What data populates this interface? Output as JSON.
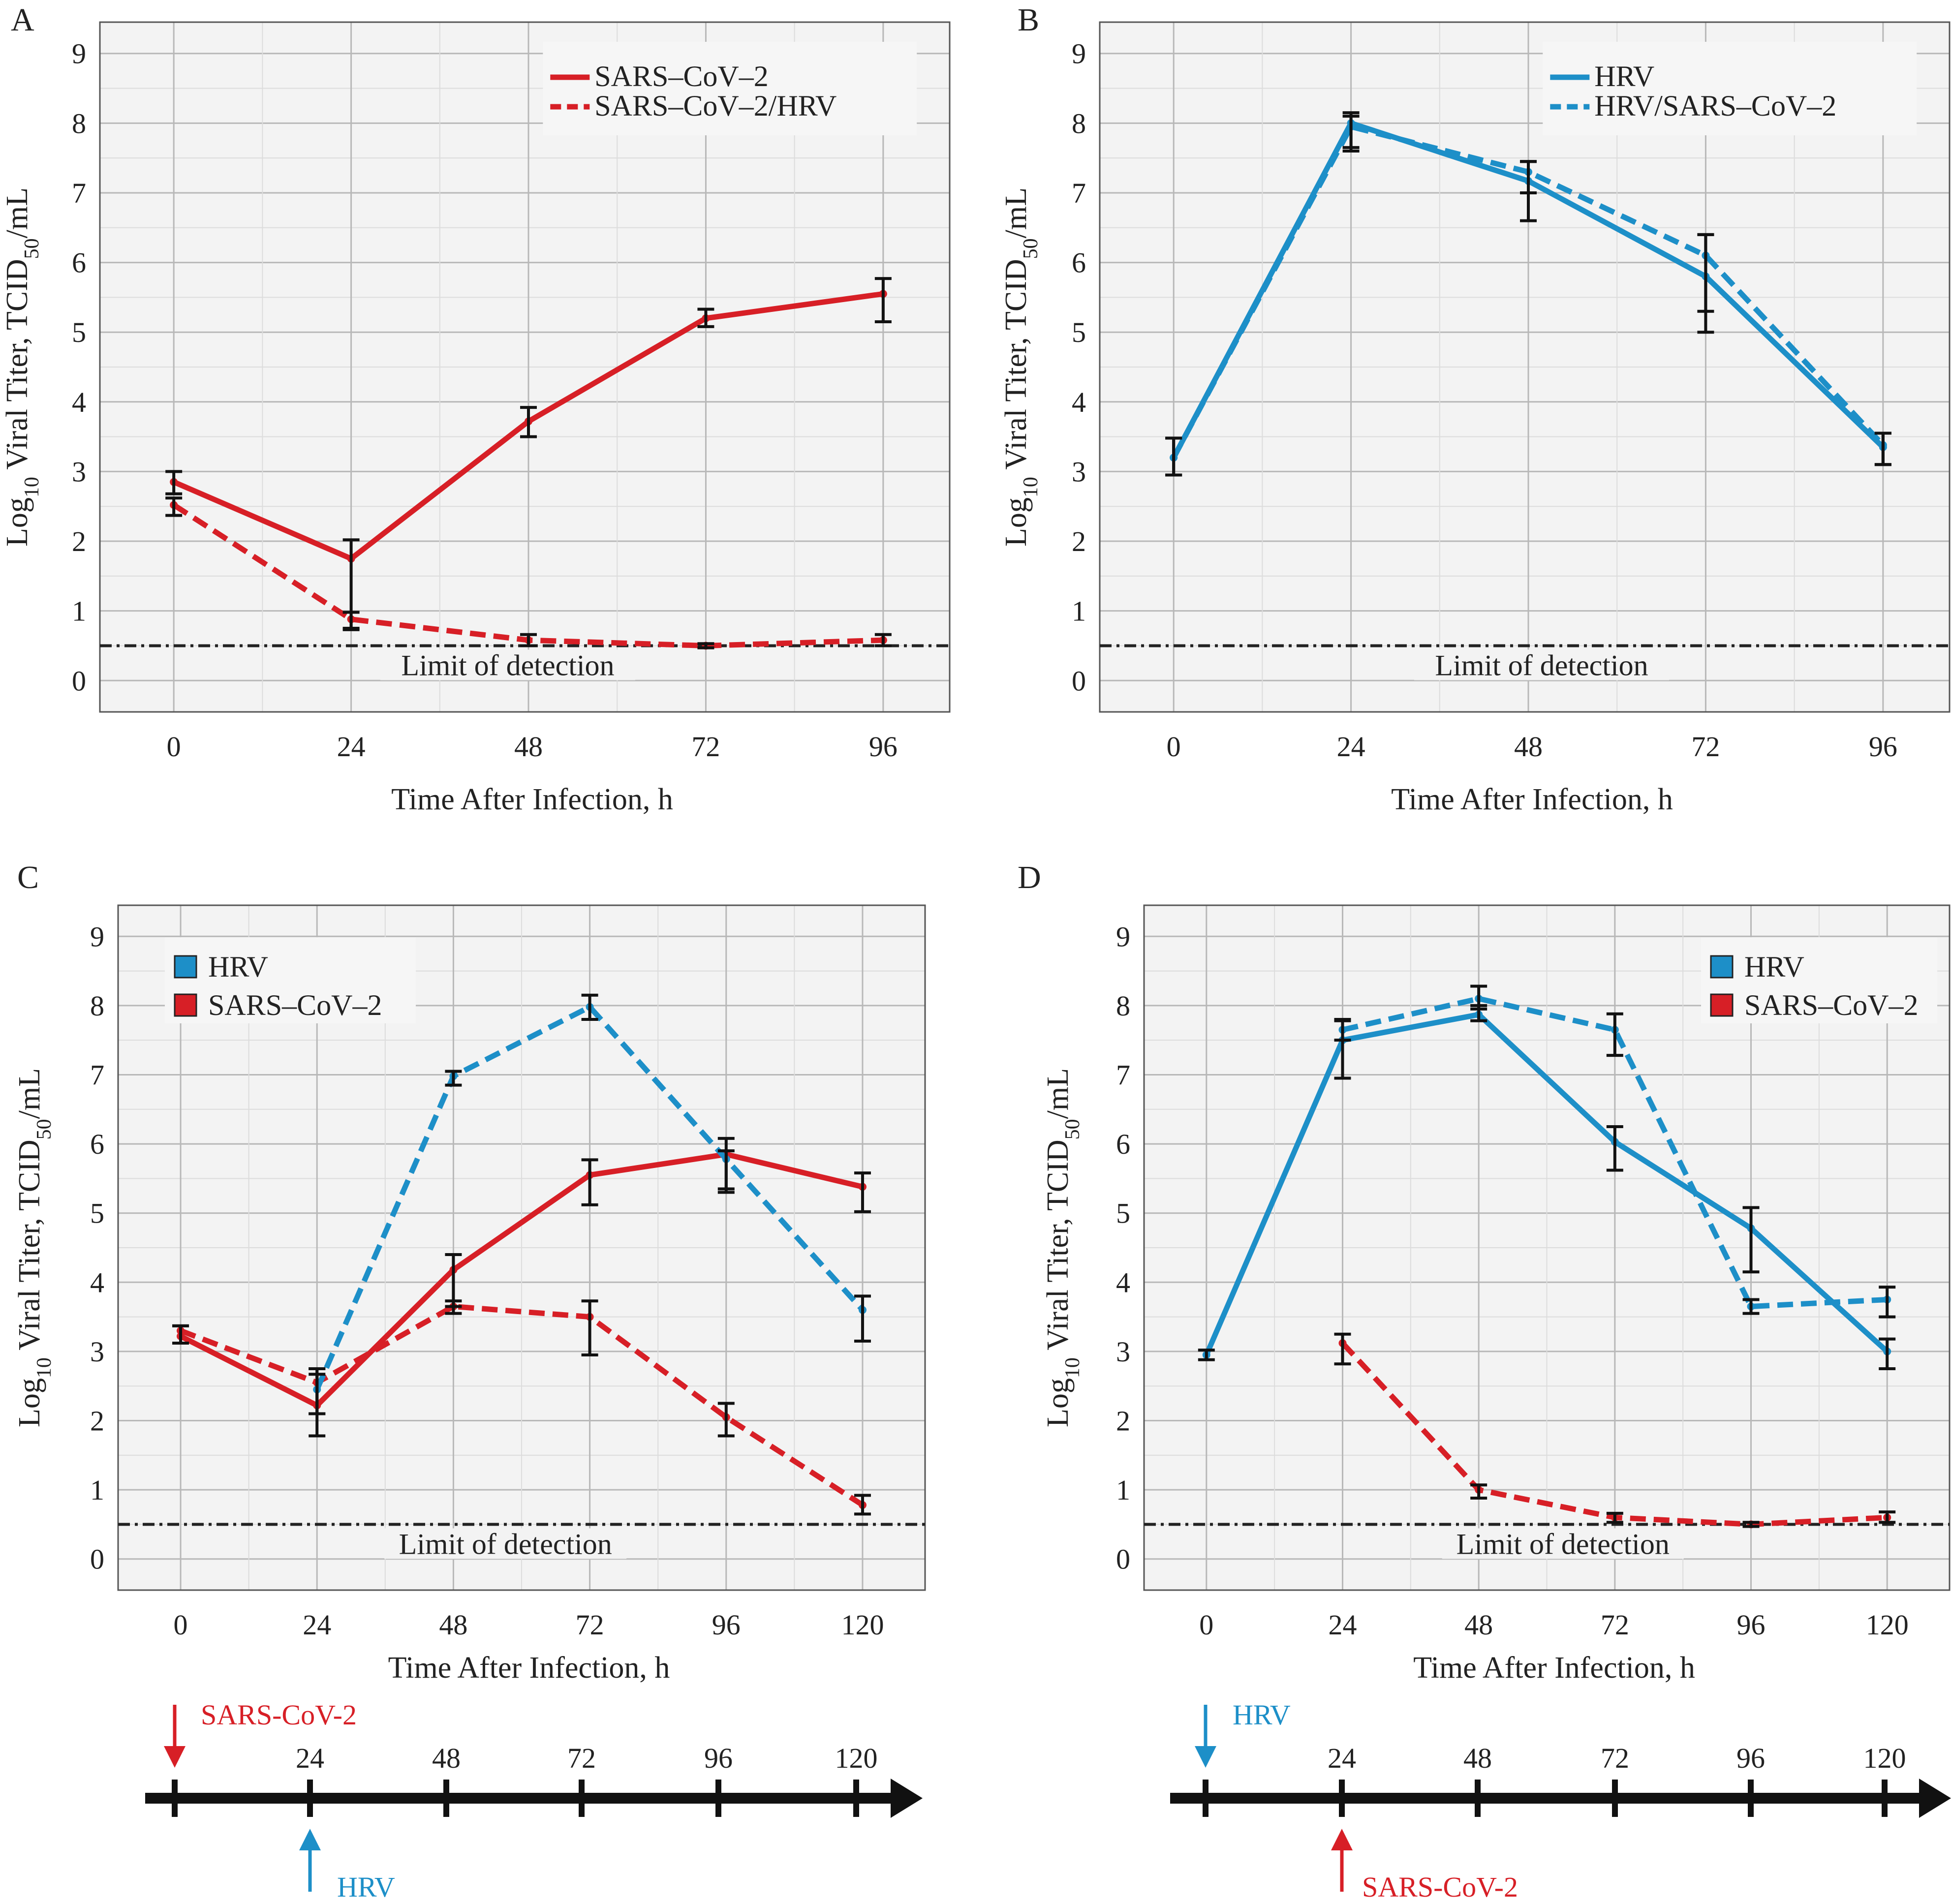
{
  "colors": {
    "sars": "#d71f26",
    "hrv": "#1d8fc8",
    "errorbar": "#111111",
    "lod": "#222222",
    "timeline": "#111111"
  },
  "chart_data": [
    {
      "panel": "A",
      "type": "line",
      "xlabel": "Time After Infection, h",
      "ylabel_parts": [
        "Log",
        "10",
        " Viral Titer, TCID",
        "50",
        "/mL"
      ],
      "x_ticks": [
        0,
        24,
        48,
        72,
        96
      ],
      "y_ticks": [
        0,
        1,
        2,
        3,
        4,
        5,
        6,
        7,
        8,
        9
      ],
      "xlim": [
        -10,
        105
      ],
      "ylim": [
        -0.45,
        9.45
      ],
      "grid": true,
      "legend_style": "line",
      "legend_position": "top-right",
      "lod": {
        "value": 0.5,
        "label": "Limit of detection"
      },
      "series": [
        {
          "name": "SARS–CoV–2",
          "color_key": "sars",
          "dash": "solid",
          "x": [
            0,
            24,
            48,
            72,
            96
          ],
          "y": [
            2.85,
            1.75,
            3.72,
            5.2,
            5.55
          ],
          "err": [
            [
              2.68,
              3.0
            ],
            [
              0.75,
              2.02
            ],
            [
              3.5,
              3.92
            ],
            [
              5.08,
              5.33
            ],
            [
              5.15,
              5.77
            ]
          ]
        },
        {
          "name": "SARS–CoV–2/HRV",
          "color_key": "sars",
          "dash": "dashed",
          "x": [
            0,
            24,
            48,
            72,
            96
          ],
          "y": [
            2.52,
            0.88,
            0.58,
            0.5,
            0.58
          ],
          "err": [
            [
              2.37,
              2.62
            ],
            [
              0.73,
              0.98
            ],
            [
              0.5,
              0.66
            ],
            [
              0.47,
              0.53
            ],
            [
              0.5,
              0.66
            ]
          ]
        }
      ]
    },
    {
      "panel": "B",
      "type": "line",
      "xlabel": "Time After Infection, h",
      "ylabel_parts": [
        "Log",
        "10",
        " Viral Titer, TCID",
        "50",
        "/mL"
      ],
      "x_ticks": [
        0,
        24,
        48,
        72,
        96
      ],
      "y_ticks": [
        0,
        1,
        2,
        3,
        4,
        5,
        6,
        7,
        8,
        9
      ],
      "xlim": [
        -10,
        105
      ],
      "ylim": [
        -0.45,
        9.45
      ],
      "grid": true,
      "legend_style": "line",
      "legend_position": "top-right",
      "lod": {
        "value": 0.5,
        "label": "Limit of detection"
      },
      "series": [
        {
          "name": "HRV",
          "color_key": "hrv",
          "dash": "solid",
          "x": [
            0,
            24,
            48,
            72,
            96
          ],
          "y": [
            3.2,
            8.0,
            7.17,
            5.8,
            3.35
          ],
          "err": [
            [
              2.95,
              3.48
            ],
            [
              7.6,
              8.15
            ],
            [
              6.6,
              7.45
            ],
            [
              5.0,
              6.4
            ],
            [
              3.1,
              3.55
            ]
          ]
        },
        {
          "name": "HRV/SARS–CoV–2",
          "color_key": "hrv",
          "dash": "dashed",
          "x": [
            0,
            24,
            48,
            72,
            96
          ],
          "y": [
            3.2,
            7.95,
            7.3,
            6.1,
            3.38
          ],
          "err": [
            [
              2.95,
              3.48
            ],
            [
              7.65,
              8.1
            ],
            [
              7.0,
              7.45
            ],
            [
              5.3,
              6.4
            ],
            [
              3.1,
              3.55
            ]
          ]
        }
      ]
    },
    {
      "panel": "C",
      "type": "line",
      "xlabel": "Time After Infection, h",
      "ylabel_parts": [
        "Log",
        "10",
        " Viral Titer, TCID",
        "50",
        "/mL"
      ],
      "x_ticks": [
        0,
        24,
        48,
        72,
        96,
        120
      ],
      "y_ticks": [
        0,
        1,
        2,
        3,
        4,
        5,
        6,
        7,
        8,
        9
      ],
      "xlim": [
        -11,
        131
      ],
      "ylim": [
        -0.45,
        9.45
      ],
      "grid": true,
      "legend_style": "box",
      "legend_position": "top-left",
      "legend": [
        {
          "label": "HRV",
          "color_key": "hrv"
        },
        {
          "label": "SARS–CoV–2",
          "color_key": "sars"
        }
      ],
      "lod": {
        "value": 0.5,
        "label": "Limit of detection"
      },
      "series": [
        {
          "color_key": "sars",
          "dash": "solid",
          "x": [
            0,
            24,
            48,
            72,
            96,
            120
          ],
          "y": [
            3.22,
            2.22,
            4.18,
            5.55,
            5.85,
            5.38
          ],
          "err": [
            [
              3.12,
              3.37
            ],
            [
              1.78,
              2.67
            ],
            [
              3.65,
              4.4
            ],
            [
              5.12,
              5.77
            ],
            [
              5.3,
              6.08
            ],
            [
              5.02,
              5.58
            ]
          ]
        },
        {
          "color_key": "sars",
          "dash": "dashed",
          "x": [
            0,
            24,
            48,
            72,
            96,
            120
          ],
          "y": [
            3.3,
            2.55,
            3.65,
            3.5,
            2.05,
            0.78
          ],
          "err": [
            [
              3.12,
              3.37
            ],
            [
              2.1,
              2.75
            ],
            [
              3.55,
              3.73
            ],
            [
              2.95,
              3.73
            ],
            [
              1.78,
              2.25
            ],
            [
              0.65,
              0.92
            ]
          ]
        },
        {
          "color_key": "hrv",
          "dash": "dashed",
          "x": [
            24,
            48,
            72,
            96,
            120
          ],
          "y": [
            2.45,
            6.98,
            7.98,
            5.78,
            3.6
          ],
          "err": [
            [
              2.1,
              2.75
            ],
            [
              6.85,
              7.05
            ],
            [
              7.8,
              8.15
            ],
            [
              5.35,
              5.9
            ],
            [
              3.15,
              3.8
            ]
          ]
        }
      ]
    },
    {
      "panel": "D",
      "type": "line",
      "xlabel": "Time After Infection, h",
      "ylabel_parts": [
        "Log",
        "10",
        " Viral Titer, TCID",
        "50",
        "/mL"
      ],
      "x_ticks": [
        0,
        24,
        48,
        72,
        96,
        120
      ],
      "y_ticks": [
        0,
        1,
        2,
        3,
        4,
        5,
        6,
        7,
        8,
        9
      ],
      "xlim": [
        -11,
        131
      ],
      "ylim": [
        -0.45,
        9.45
      ],
      "grid": true,
      "legend_style": "box",
      "legend_position": "top-right",
      "legend": [
        {
          "label": "HRV",
          "color_key": "hrv"
        },
        {
          "label": "SARS–CoV–2",
          "color_key": "sars"
        }
      ],
      "lod": {
        "value": 0.5,
        "label": "Limit of detection"
      },
      "series": [
        {
          "color_key": "hrv",
          "dash": "solid",
          "x": [
            0,
            24,
            48,
            72,
            96,
            120
          ],
          "y": [
            2.95,
            7.5,
            7.87,
            6.03,
            4.78,
            3.0
          ],
          "err": [
            [
              2.88,
              3.02
            ],
            [
              6.95,
              7.78
            ],
            [
              7.78,
              8.0
            ],
            [
              5.62,
              6.25
            ],
            [
              4.15,
              5.08
            ],
            [
              2.75,
              3.18
            ]
          ]
        },
        {
          "color_key": "hrv",
          "dash": "dashed",
          "x": [
            24,
            48,
            72,
            96,
            120
          ],
          "y": [
            7.65,
            8.1,
            7.65,
            3.65,
            3.75
          ],
          "err": [
            [
              7.5,
              7.8
            ],
            [
              7.95,
              8.28
            ],
            [
              7.28,
              7.88
            ],
            [
              3.55,
              3.75
            ],
            [
              3.5,
              3.93
            ]
          ]
        },
        {
          "color_key": "sars",
          "dash": "dashed",
          "x": [
            24,
            48,
            72,
            96,
            120
          ],
          "y": [
            3.12,
            1.0,
            0.6,
            0.5,
            0.6
          ],
          "err": [
            [
              2.82,
              3.25
            ],
            [
              0.88,
              1.07
            ],
            [
              0.53,
              0.66
            ],
            [
              0.47,
              0.53
            ],
            [
              0.53,
              0.68
            ]
          ]
        }
      ]
    }
  ],
  "timelines": [
    {
      "panel": "C",
      "labels": [
        "24",
        "48",
        "72",
        "96",
        "120"
      ],
      "top_arrow_label": "SARS-CoV-2",
      "top_arrow_color_key": "sars",
      "bottom_arrow_label": "HRV",
      "bottom_arrow_color_key": "hrv"
    },
    {
      "panel": "D",
      "labels": [
        "24",
        "48",
        "72",
        "96",
        "120"
      ],
      "top_arrow_label": "HRV",
      "top_arrow_color_key": "hrv",
      "bottom_arrow_label": "SARS-CoV-2",
      "bottom_arrow_color_key": "sars"
    }
  ]
}
